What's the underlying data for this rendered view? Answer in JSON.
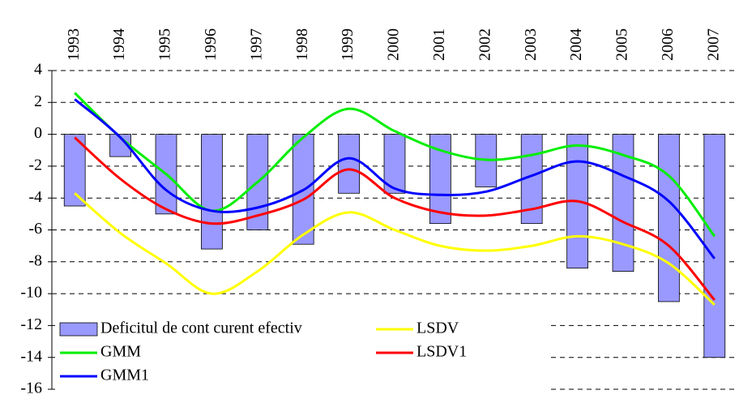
{
  "chart_data": {
    "type": "bar-line",
    "categories": [
      "1993",
      "1994",
      "1995",
      "1996",
      "1997",
      "1998",
      "1999",
      "2000",
      "2001",
      "2002",
      "2003",
      "2004",
      "2005",
      "2006",
      "2007"
    ],
    "series": [
      {
        "name": "Deficitul de cont curent efectiv",
        "type": "bar",
        "color": "#9999ff",
        "values": [
          -4.5,
          -1.4,
          -5.0,
          -7.2,
          -6.0,
          -6.9,
          -3.7,
          -3.7,
          -5.6,
          -3.3,
          -5.6,
          -8.4,
          -8.6,
          -10.5,
          -14.0
        ]
      },
      {
        "name": "LSDV",
        "type": "line",
        "color": "#ffff00",
        "values": [
          -3.7,
          -6.2,
          -8.1,
          -10.0,
          -8.6,
          -6.3,
          -4.9,
          -6.0,
          -7.0,
          -7.3,
          -7.0,
          -6.4,
          -6.9,
          -8.1,
          -10.7
        ]
      },
      {
        "name": "GMM",
        "type": "line",
        "color": "#00ee00",
        "values": [
          2.6,
          -0.2,
          -2.5,
          -4.8,
          -3.0,
          -0.2,
          1.6,
          0.2,
          -1.0,
          -1.6,
          -1.3,
          -0.7,
          -1.3,
          -2.6,
          -6.4
        ]
      },
      {
        "name": "LSDV1",
        "type": "line",
        "color": "#ff0000",
        "values": [
          -0.2,
          -2.8,
          -4.7,
          -5.6,
          -5.1,
          -4.1,
          -2.2,
          -4.0,
          -4.9,
          -5.1,
          -4.7,
          -4.2,
          -5.5,
          -7.0,
          -10.4
        ]
      },
      {
        "name": "GMM1",
        "type": "line",
        "color": "#0000ff",
        "values": [
          2.2,
          -0.2,
          -3.5,
          -4.8,
          -4.6,
          -3.5,
          -1.5,
          -3.4,
          -3.8,
          -3.6,
          -2.6,
          -1.7,
          -2.6,
          -4.2,
          -7.8
        ]
      }
    ],
    "ylim": [
      -16,
      4
    ],
    "yticks": [
      -16,
      -14,
      -12,
      -10,
      -8,
      -6,
      -4,
      -2,
      0,
      2,
      4
    ],
    "grid": true,
    "legend": "lower left",
    "smooth": true
  }
}
